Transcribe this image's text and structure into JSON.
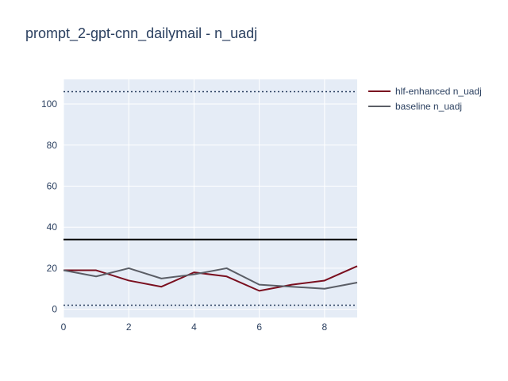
{
  "title": "prompt_2-gpt-cnn_dailymail - n_uadj",
  "chart_data": {
    "type": "line",
    "title": "prompt_2-gpt-cnn_dailymail - n_uadj",
    "xlabel": "",
    "ylabel": "",
    "xlim": [
      0,
      9
    ],
    "ylim": [
      -4,
      112
    ],
    "x_ticks": [
      0,
      2,
      4,
      6,
      8
    ],
    "y_ticks": [
      0,
      20,
      40,
      60,
      80,
      100
    ],
    "grid": true,
    "legend_position": "top-right",
    "x": [
      0,
      1,
      2,
      3,
      4,
      5,
      6,
      7,
      8,
      9
    ],
    "series": [
      {
        "name": "hlf-enhanced n_uadj",
        "color": "#7a0f1f",
        "values": [
          19,
          19,
          14,
          11,
          18,
          16,
          9,
          12,
          14,
          21
        ]
      },
      {
        "name": "baseline n_uadj",
        "color": "#5b5e66",
        "values": [
          19,
          16,
          20,
          15,
          17,
          20,
          12,
          11,
          10,
          13
        ]
      }
    ],
    "reference_lines": [
      {
        "y": 34,
        "style": "solid",
        "color": "#000000"
      },
      {
        "y": 106,
        "style": "dotted",
        "color": "#2a3f5f"
      },
      {
        "y": 2,
        "style": "dotted",
        "color": "#2a3f5f"
      }
    ],
    "colors": {
      "plot_bg": "#e5ecf6",
      "grid": "#ffffff",
      "text": "#2a3f5f"
    }
  }
}
